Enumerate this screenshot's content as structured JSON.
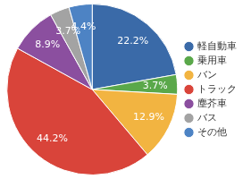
{
  "chart_data": {
    "type": "pie",
    "categories": [
      "軽自動車",
      "乗用車",
      "バン",
      "トラック",
      "塵芥車",
      "バス",
      "その他"
    ],
    "values": [
      22.2,
      3.7,
      12.9,
      44.2,
      8.9,
      3.7,
      4.4
    ],
    "value_labels": [
      "22.2%",
      "3.7%",
      "12.9%",
      "44.2%",
      "8.9%",
      "3.7%",
      "4.4%"
    ],
    "colors": [
      "#3a6aa8",
      "#5aa84a",
      "#f2b441",
      "#d9443a",
      "#8b4f9f",
      "#a3a3a3",
      "#4d83c4"
    ],
    "data_labels": true,
    "legend": "right"
  }
}
